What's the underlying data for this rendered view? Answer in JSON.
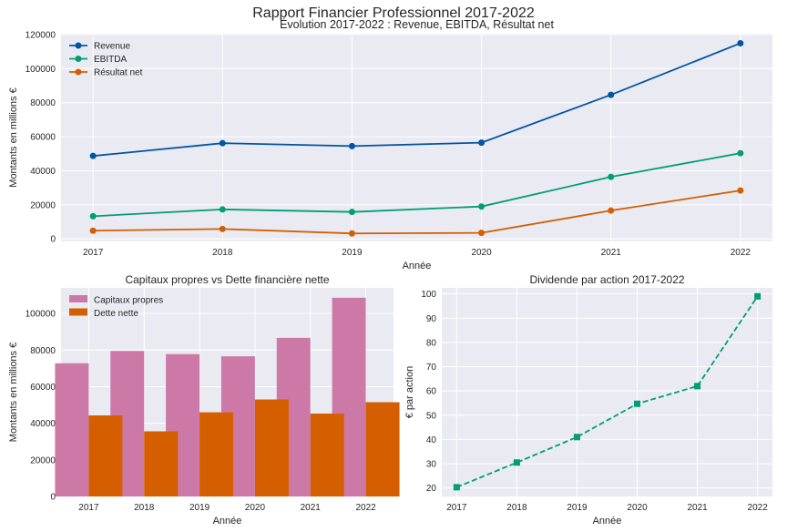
{
  "suptitle": "Rapport Financier Professionnel 2017-2022",
  "chart_data": [
    {
      "type": "line",
      "title": "Évolution 2017-2022 : Revenue, EBITDA, Résultat net",
      "xlabel": "Année",
      "ylabel": "Montants en millions €",
      "categories": [
        "2017",
        "2018",
        "2019",
        "2020",
        "2021",
        "2022"
      ],
      "ylim": [
        -1500,
        120500
      ],
      "yticks": [
        0,
        20000,
        40000,
        60000,
        80000,
        100000,
        120000
      ],
      "legend": "top-left",
      "series": [
        {
          "name": "Revenue",
          "color": "#0055a5",
          "values": [
            48700,
            56200,
            54500,
            56500,
            84600,
            114900
          ]
        },
        {
          "name": "EBITDA",
          "color": "#009e73",
          "values": [
            13300,
            17300,
            15800,
            19000,
            36400,
            50300
          ]
        },
        {
          "name": "Résultat net",
          "color": "#d55e00",
          "values": [
            4800,
            5800,
            3200,
            3500,
            16600,
            28400
          ]
        }
      ]
    },
    {
      "type": "bar",
      "title": "Capitaux propres vs Dette financière nette",
      "xlabel": "Année",
      "ylabel": "Montants en millions €",
      "categories": [
        "2017",
        "2018",
        "2019",
        "2020",
        "2021",
        "2022"
      ],
      "ylim": [
        0,
        114000
      ],
      "yticks": [
        0,
        20000,
        40000,
        60000,
        80000,
        100000
      ],
      "legend": "top-left",
      "series": [
        {
          "name": "Capitaux propres",
          "color": "#cc79a7",
          "values": [
            72800,
            79500,
            77800,
            76600,
            86700,
            108600
          ]
        },
        {
          "name": "Dette nette",
          "color": "#d55e00",
          "values": [
            44300,
            35600,
            46000,
            53000,
            45300,
            51500
          ]
        }
      ]
    },
    {
      "type": "line",
      "title": "Dividende par action 2017-2022",
      "xlabel": "Année",
      "ylabel": "€ par action",
      "categories": [
        "2017",
        "2018",
        "2019",
        "2020",
        "2021",
        "2022"
      ],
      "ylim": [
        16.5,
        102.5
      ],
      "yticks": [
        20,
        30,
        40,
        50,
        60,
        70,
        80,
        90,
        100
      ],
      "series": [
        {
          "name": "Dividende",
          "color": "#009e73",
          "values": [
            20.3,
            30.5,
            41,
            54.7,
            62,
            99
          ]
        }
      ]
    }
  ]
}
